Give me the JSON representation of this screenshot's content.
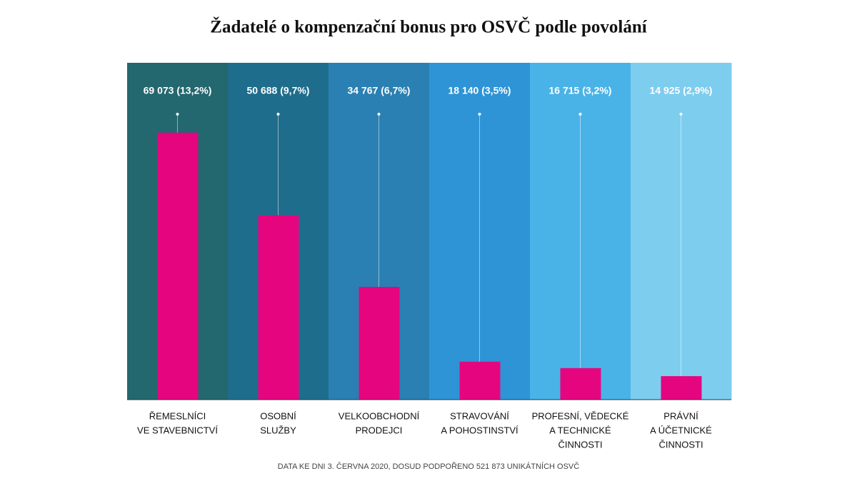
{
  "chart_data": {
    "type": "bar",
    "title": "Žadatelé o kompenzační bonus pro OSVČ podle povolání",
    "categories": [
      [
        "ŘEMESLNÍCI",
        "VE STAVEBNICTVÍ"
      ],
      [
        "OSOBNÍ",
        "SLUŽBY"
      ],
      [
        "VELKOOBCHODNÍ",
        "PRODEJCI"
      ],
      [
        "STRAVOVÁNÍ",
        "A POHOSTINSTVÍ"
      ],
      [
        "PROFESNÍ, VĚDECKÉ",
        "A TECHNICKÉ",
        "ČINNOSTI"
      ],
      [
        "PRÁVNÍ",
        "A ÚČETNICKÉ",
        "ČINNOSTI"
      ]
    ],
    "values": [
      69073,
      50688,
      34767,
      18140,
      16715,
      14925
    ],
    "value_labels": [
      "69 073 (13,2%)",
      "50 688 (9,7%)",
      "34 767 (6,7%)",
      "18 140 (3,5%)",
      "16 715 (3,2%)",
      "14 925 (2,9%)"
    ],
    "color": "#e5067f",
    "column_colors": [
      "#23676f",
      "#1f6d8c",
      "#2a80b2",
      "#2e94d6",
      "#49b3e8",
      "#7dcdef"
    ],
    "ylim": [
      9700,
      84600
    ],
    "note": "DATA KE DNI 3. ČERVNA 2020, DOSUD PODPOŘENO 521 873 UNIKÁTNÍCH OSVČ"
  }
}
